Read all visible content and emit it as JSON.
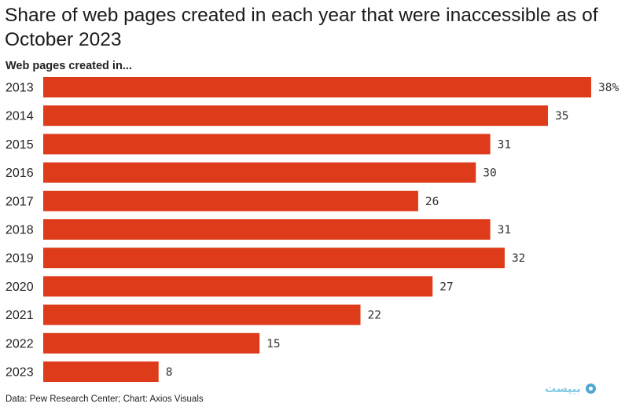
{
  "chart_data": {
    "type": "bar",
    "orientation": "horizontal",
    "title": "Share of web pages created in each year that were inaccessible as of October 2023",
    "subtitle": "Web pages created in...",
    "categories": [
      "2013",
      "2014",
      "2015",
      "2016",
      "2017",
      "2018",
      "2019",
      "2020",
      "2021",
      "2022",
      "2023"
    ],
    "values": [
      38,
      35,
      31,
      30,
      26,
      31,
      32,
      27,
      22,
      15,
      8
    ],
    "value_labels": [
      "38%",
      "35",
      "31",
      "30",
      "26",
      "31",
      "32",
      "27",
      "22",
      "15",
      "8"
    ],
    "xlim": [
      0,
      38
    ],
    "xlabel": "",
    "ylabel": "",
    "grid": false,
    "bar_color": "#dd3b1a",
    "source": "Data: Pew Research Center; Chart: Axios Visuals"
  },
  "brand": {
    "accent": "#4fa9d1"
  }
}
